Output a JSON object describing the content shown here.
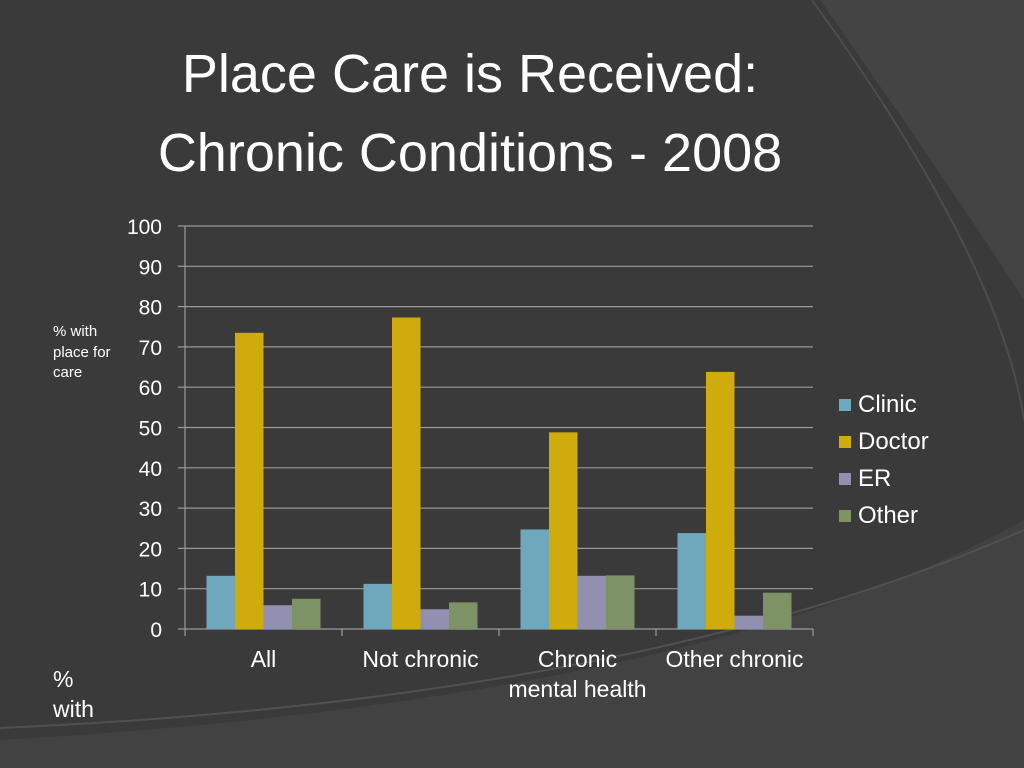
{
  "slide": {
    "title_line_1": "Place Care is Received:",
    "title_line_2": "Chronic Conditions - 2008",
    "background_color": "#3a3a3a",
    "accent_band_color": "#4a4a4a"
  },
  "chart_data": {
    "type": "bar",
    "title": "Place Care is Received: Chronic Conditions - 2008",
    "ylabel": "% with place for care",
    "ylabel_bottom": "% with",
    "ylim": [
      0,
      100
    ],
    "yticks": [
      "0",
      "10",
      "20",
      "30",
      "40",
      "50",
      "60",
      "70",
      "80",
      "90",
      "100"
    ],
    "grid": true,
    "legend_position": "right",
    "categories": [
      [
        "All"
      ],
      [
        "Not chronic"
      ],
      [
        "Chronic",
        "mental health"
      ],
      [
        "Other chronic"
      ]
    ],
    "series": [
      {
        "name": "Clinic",
        "color": "#6fa8bd",
        "values": [
          13.2,
          11.2,
          24.7,
          23.8
        ]
      },
      {
        "name": "Doctor",
        "color": "#cfab0b",
        "values": [
          73.5,
          77.3,
          48.8,
          63.8
        ]
      },
      {
        "name": "ER",
        "color": "#9290b0",
        "values": [
          5.9,
          4.9,
          13.2,
          3.3
        ]
      },
      {
        "name": "Other",
        "color": "#7d9366",
        "values": [
          7.5,
          6.6,
          13.3,
          9.0
        ]
      }
    ]
  }
}
